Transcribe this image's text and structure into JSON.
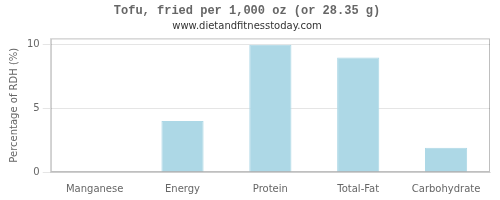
{
  "chart_data": {
    "type": "bar",
    "title": "Tofu, fried per 1,000 oz (or 28.35 g)",
    "subtitle": "www.dietandfitnesstoday.com",
    "categories": [
      "Manganese",
      "Energy",
      "Protein",
      "Total-Fat",
      "Carbohydrate"
    ],
    "values": [
      0.0,
      4.0,
      10.0,
      9.0,
      1.9
    ],
    "color": "#add8e6",
    "ylabel": "Percentage of RDH (%)",
    "ylim": [
      0,
      10.5
    ],
    "yticks": [
      0,
      5,
      10
    ],
    "grid": true
  }
}
